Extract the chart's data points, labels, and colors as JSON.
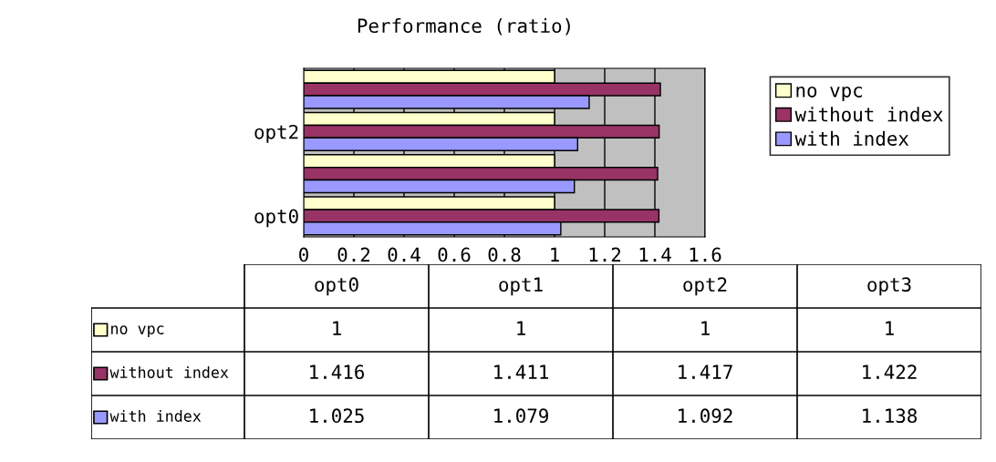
{
  "chart_data": [
    {
      "type": "bar",
      "orientation": "horizontal",
      "title": "Performance (ratio)",
      "categories": [
        null,
        "opt2",
        null,
        "opt0"
      ],
      "series": [
        {
          "name": "no vpc",
          "color": "#ffffcc",
          "values": [
            1,
            1,
            1,
            1
          ]
        },
        {
          "name": "without index",
          "color": "#993366",
          "values": [
            1.422,
            1.417,
            1.411,
            1.416
          ]
        },
        {
          "name": "with index",
          "color": "#9999ff",
          "values": [
            1.138,
            1.092,
            1.079,
            1.025
          ]
        }
      ],
      "xlim": [
        0,
        1.6
      ],
      "xticks": [
        0,
        0.2,
        0.4,
        0.6,
        0.8,
        1,
        1.2,
        1.4,
        1.6
      ],
      "grid": "x",
      "legend": "right"
    },
    {
      "type": "other",
      "categories": [
        "opt0",
        "opt1",
        "opt2",
        "opt3"
      ],
      "series": [
        {
          "name": "no vpc",
          "color": "#ffffcc",
          "values": [
            1,
            1,
            1,
            1
          ]
        },
        {
          "name": "without index",
          "color": "#993366",
          "values": [
            1.416,
            1.411,
            1.417,
            1.422
          ]
        },
        {
          "name": "with index",
          "color": "#9999ff",
          "values": [
            1.025,
            1.079,
            1.092,
            1.138
          ]
        }
      ],
      "data_labels": true
    }
  ]
}
